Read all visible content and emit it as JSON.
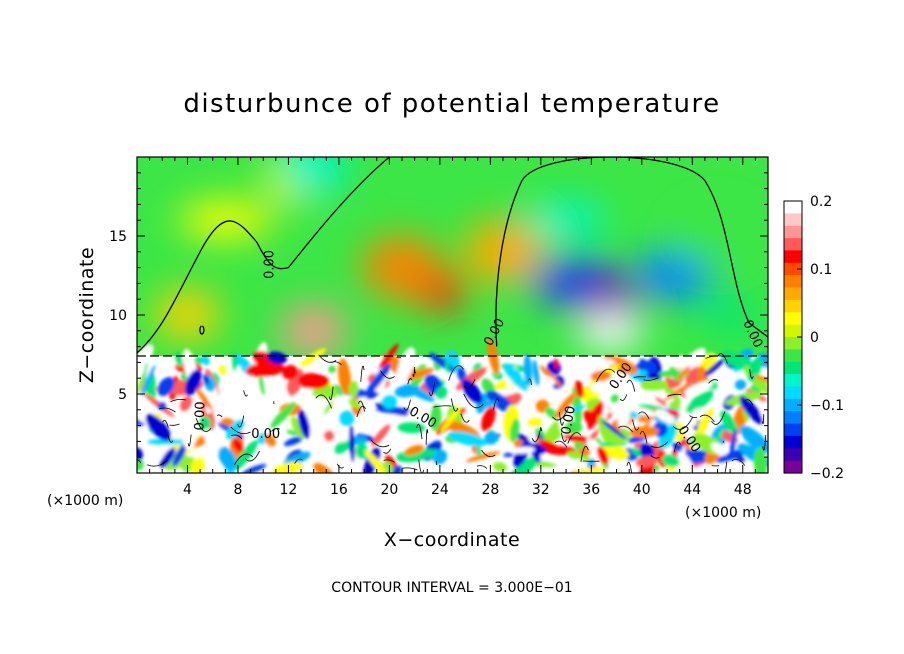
{
  "chart_data": {
    "type": "heatmap",
    "title": "disturbunce of potential temperature",
    "xlabel": "X−coordinate",
    "ylabel": "Z−coordinate",
    "x_unit": "(×1000 m)",
    "x_unit_right": "(×1000 m)",
    "xlim": [
      0,
      50
    ],
    "ylim": [
      0,
      20
    ],
    "x_ticks": [
      4,
      8,
      12,
      16,
      20,
      24,
      28,
      32,
      36,
      40,
      44,
      48
    ],
    "y_ticks": [
      5,
      10,
      15
    ],
    "colorbar": {
      "vmin": -0.2,
      "vmax": 0.2,
      "ticks": [
        0.2,
        0.1,
        0,
        -0.1,
        -0.2
      ],
      "tick_labels": [
        "0.2",
        "0.1",
        "0",
        "−0.1",
        "−0.2"
      ],
      "colors": [
        "#7b0099",
        "#3c00b4",
        "#0000d2",
        "#0040f0",
        "#0080ff",
        "#00b0ff",
        "#00dcff",
        "#00f5c8",
        "#00e676",
        "#3ce646",
        "#8cf028",
        "#d2f500",
        "#ffff00",
        "#ffd200",
        "#ffaa00",
        "#ff8000",
        "#ff4b00",
        "#ff0000",
        "#ff5a5a",
        "#ff9696",
        "#ffc8c8",
        "#ffffff"
      ]
    },
    "contour_labels": [
      "0.00",
      "0.00",
      "0.00",
      "0.00",
      "0.00",
      "0.00",
      "0.00",
      "0.00",
      "0.00"
    ],
    "contour_interval": "CONTOUR INTERVAL = 3.000E−01",
    "features": [
      {
        "x": 24,
        "z": 11.5,
        "value": 0.12
      },
      {
        "x": 14,
        "z": 9,
        "value": 0.16
      },
      {
        "x": 21,
        "z": 13,
        "value": 0.09
      },
      {
        "x": 7,
        "z": 16,
        "value": 0.03
      },
      {
        "x": 12,
        "z": 18.5,
        "value": 0.01
      },
      {
        "x": 14,
        "z": 19.5,
        "value": -0.06
      },
      {
        "x": 34,
        "z": 16,
        "value": -0.06
      },
      {
        "x": 35,
        "z": 12,
        "value": -0.13
      },
      {
        "x": 37.5,
        "z": 10.5,
        "value": -0.19
      },
      {
        "x": 37.5,
        "z": 9,
        "value": 0.21
      },
      {
        "x": 42.5,
        "z": 12.5,
        "value": -0.12
      },
      {
        "x": 46,
        "z": 15,
        "value": -0.03
      },
      {
        "x": 47,
        "z": 10,
        "value": -0.04
      },
      {
        "x": 4,
        "z": 10,
        "value": 0.04
      },
      {
        "x": 29,
        "z": 14,
        "value": 0.06
      }
    ]
  }
}
